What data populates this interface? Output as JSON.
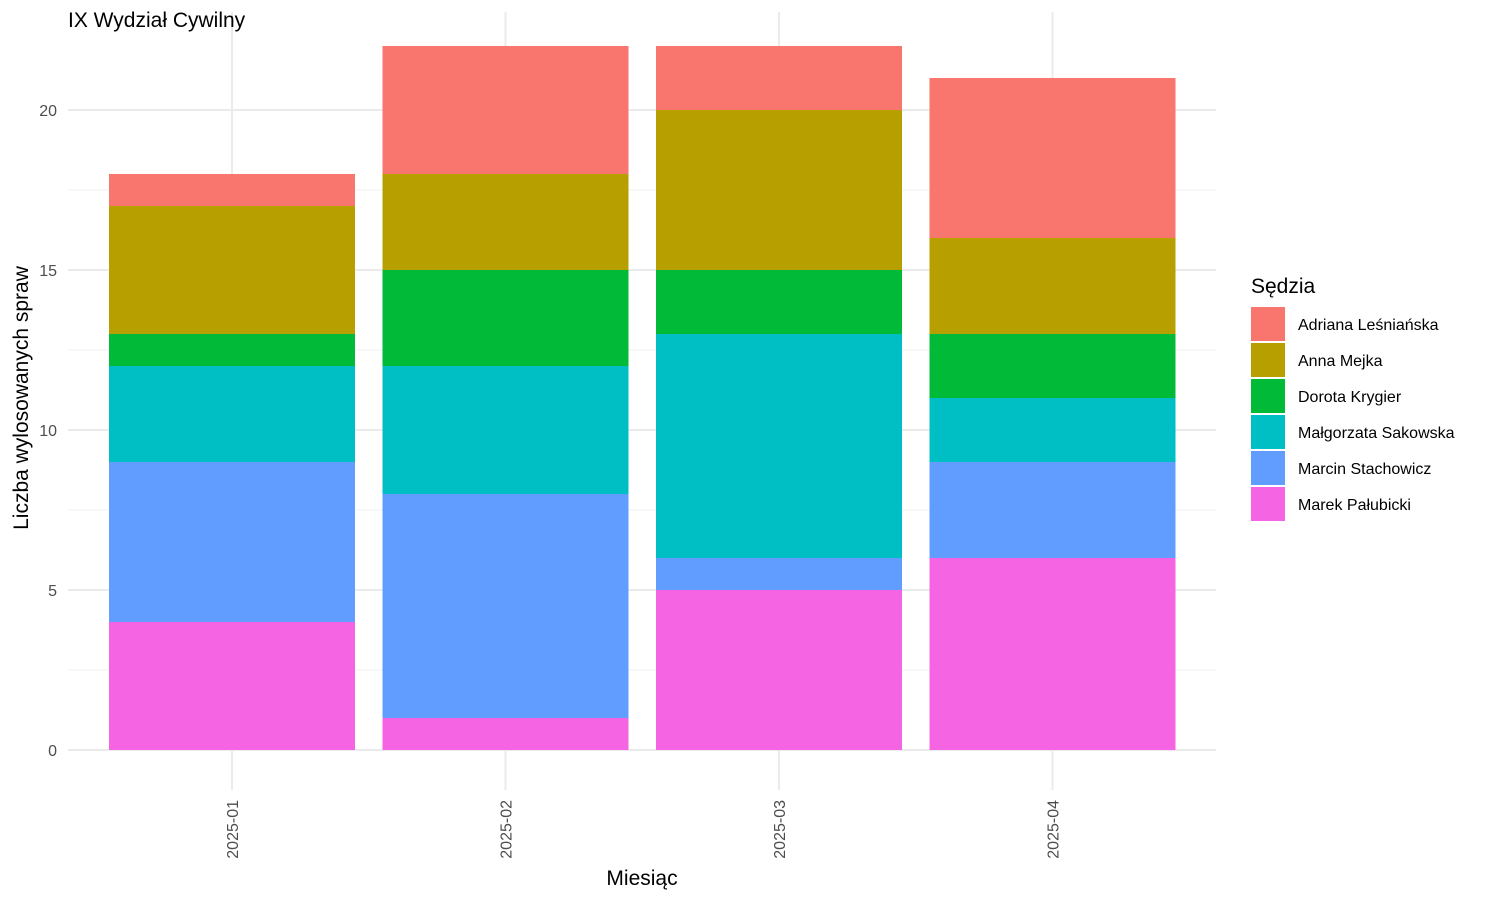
{
  "chart_data": {
    "type": "bar",
    "stacked": true,
    "title": "IX Wydział Cywilny",
    "xlabel": "Miesiąc",
    "ylabel": "Liczba wylosowanych spraw",
    "ylim": [
      0,
      22
    ],
    "yticks": [
      0,
      5,
      10,
      15,
      20
    ],
    "grid": true,
    "legend_title": "Sędzia",
    "legend_position": "right",
    "categories": [
      "2025-01",
      "2025-02",
      "2025-03",
      "2025-04"
    ],
    "series": [
      {
        "name": "Marek Pałubicki",
        "color": "#F564E3",
        "values": [
          4,
          1,
          5,
          6
        ]
      },
      {
        "name": "Marcin Stachowicz",
        "color": "#619CFF",
        "values": [
          5,
          7,
          1,
          3
        ]
      },
      {
        "name": "Małgorzata Sakowska",
        "color": "#00BFC4",
        "values": [
          3,
          4,
          7,
          2
        ]
      },
      {
        "name": "Dorota Krygier",
        "color": "#00BA38",
        "values": [
          1,
          3,
          2,
          2
        ]
      },
      {
        "name": "Anna Mejka",
        "color": "#B79F00",
        "values": [
          4,
          3,
          5,
          3
        ]
      },
      {
        "name": "Adriana Leśniańska",
        "color": "#F8766D",
        "values": [
          1,
          4,
          2,
          5
        ]
      }
    ],
    "legend_order": [
      "Adriana Leśniańska",
      "Anna Mejka",
      "Dorota Krygier",
      "Małgorzata Sakowska",
      "Marcin Stachowicz",
      "Marek Pałubicki"
    ]
  }
}
